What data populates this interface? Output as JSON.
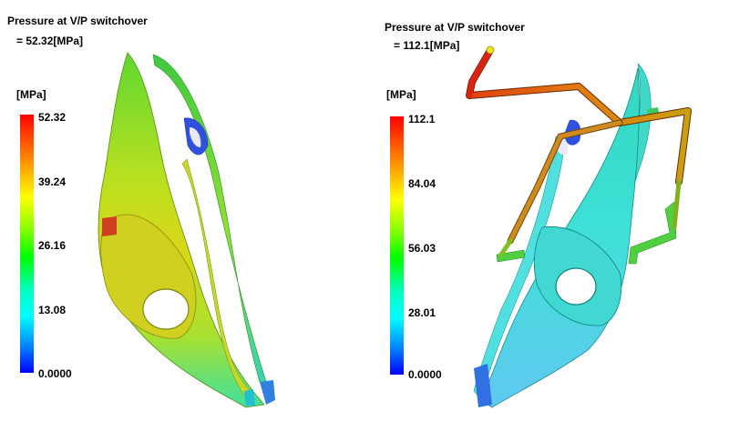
{
  "panels": [
    {
      "title": "Pressure at V/P switchover",
      "value": "= 52.32[MPa]",
      "unit": "[MPa]",
      "ticks": [
        "52.32",
        "39.24",
        "26.16",
        "13.08",
        "0.0000"
      ]
    },
    {
      "title": "Pressure at V/P switchover",
      "value": "= 112.1[MPa]",
      "unit": "[MPa]",
      "ticks": [
        "112.1",
        "84.04",
        "56.03",
        "28.01",
        "0.0000"
      ]
    }
  ]
}
